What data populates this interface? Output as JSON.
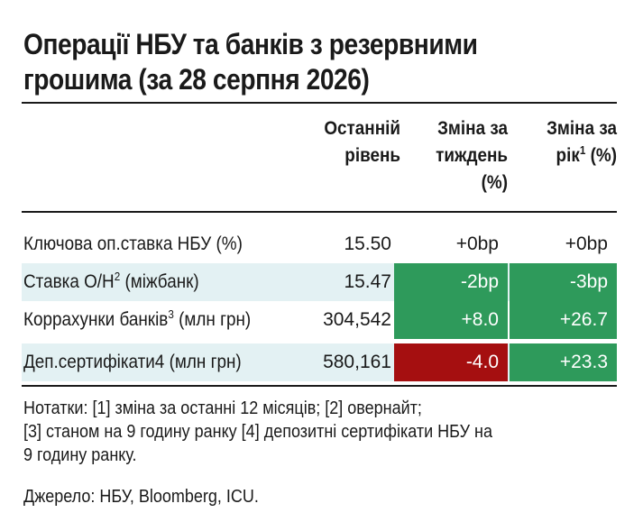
{
  "title": {
    "line1": "Операції НБУ та банків з резервними",
    "line2": "грошима (за 28 серпня 2026)"
  },
  "headers": {
    "last_level": [
      "Останній",
      "рівень"
    ],
    "week_change": [
      "Зміна за",
      "тиждень",
      "(%)"
    ],
    "year_change": [
      "Зміна за",
      "рік",
      "1",
      "(%)"
    ]
  },
  "rows": [
    {
      "label": "Ключова оп.ставка НБУ (%)",
      "sup": "",
      "label_suffix": "",
      "value": "15.50",
      "week": "+0bp",
      "year": "+0bp",
      "week_color": "none",
      "year_color": "none",
      "shaded": false
    },
    {
      "label": "Ставка О/Н",
      "sup": "2",
      "label_suffix": " (міжбанк)",
      "value": "15.47",
      "week": "-2bp",
      "year": "-3bp",
      "week_color": "#2e9a5b",
      "year_color": "#2e9a5b",
      "shaded": true
    },
    {
      "label": "Корраxунки банків",
      "sup": "3",
      "label_suffix": " (млн грн)",
      "value": "304,542",
      "week": "+8.0",
      "year": "+26.7",
      "week_color": "#2e9a5b",
      "year_color": "#2e9a5b",
      "shaded": false
    },
    {
      "label": "Деп.сертифікати4 (млн грн)",
      "sup": "",
      "label_suffix": "",
      "value": "580,161",
      "week": "-4.0",
      "year": "+23.3",
      "week_color": "#a50f10",
      "year_color": "#2e9a5b",
      "shaded": true
    }
  ],
  "notes": [
    "Нотатки: [1] зміна за останні 12 місяців; [2] овернайт;",
    "[3] станом на 9 годину ранку [4] депозитні сертифікати НБУ на",
    "9 годину ранку."
  ],
  "source": "Джерело: НБУ, Bloomberg, ICU."
}
